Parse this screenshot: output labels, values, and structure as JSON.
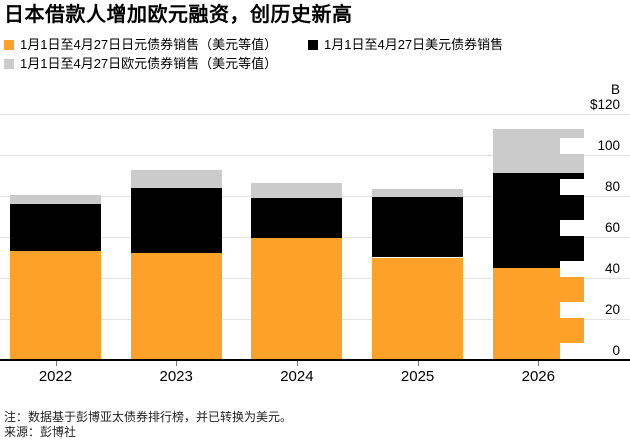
{
  "title": "日本借款人增加欧元融资，创历史新高",
  "legend": {
    "items": [
      {
        "id": "yen",
        "label": "1月1日至4月27日日元债券销售（美元等值）",
        "color": "#FDA129"
      },
      {
        "id": "usd",
        "label": "1月1日至4月27日美元债券销售",
        "color": "#000000"
      },
      {
        "id": "euro",
        "label": "1月1日至4月27日欧元债券销售（美元等值）",
        "color": "#CBCBCB"
      }
    ]
  },
  "y_axis": {
    "unit_label": "B"
  },
  "chart_data": {
    "type": "bar",
    "stacked": true,
    "title": "日本借款人增加欧元融资，创历史新高",
    "categories": [
      "2022",
      "2023",
      "2024",
      "2025",
      "2026"
    ],
    "series": [
      {
        "name": "1月1日至4月27日日元债券销售（美元等值）",
        "color": "#FDA129",
        "values": [
          53,
          52,
          59.5,
          50,
          45
        ]
      },
      {
        "name": "1月1日至4月27日美元债券销售",
        "color": "#000000",
        "values": [
          23,
          32,
          19.5,
          29.5,
          46
        ]
      },
      {
        "name": "1月1日至4月27日欧元债券销售（美元等值）",
        "color": "#CBCBCB",
        "values": [
          4.5,
          8.5,
          7.5,
          4,
          21.5
        ]
      }
    ],
    "totals": [
      80.5,
      92.5,
      86.5,
      83.5,
      112.5
    ],
    "xlabel": "",
    "ylabel": "B",
    "ylim": [
      0,
      120
    ],
    "yticks": [
      0,
      20,
      40,
      60,
      80,
      100,
      120
    ],
    "ytick_labels": [
      "0",
      "20",
      "40",
      "60",
      "80",
      "100",
      "$120"
    ],
    "grid": "horizontal",
    "legend_position": "top",
    "axis_side": "right"
  },
  "footer": {
    "note": "注：数据基于彭博亚太债券排行榜，并已转换为美元。",
    "source": "来源：彭博社"
  },
  "colors": {
    "background": "#FFFFFF",
    "gridline": "#E3E3E3",
    "axis": "#000000",
    "text": "#000000"
  }
}
